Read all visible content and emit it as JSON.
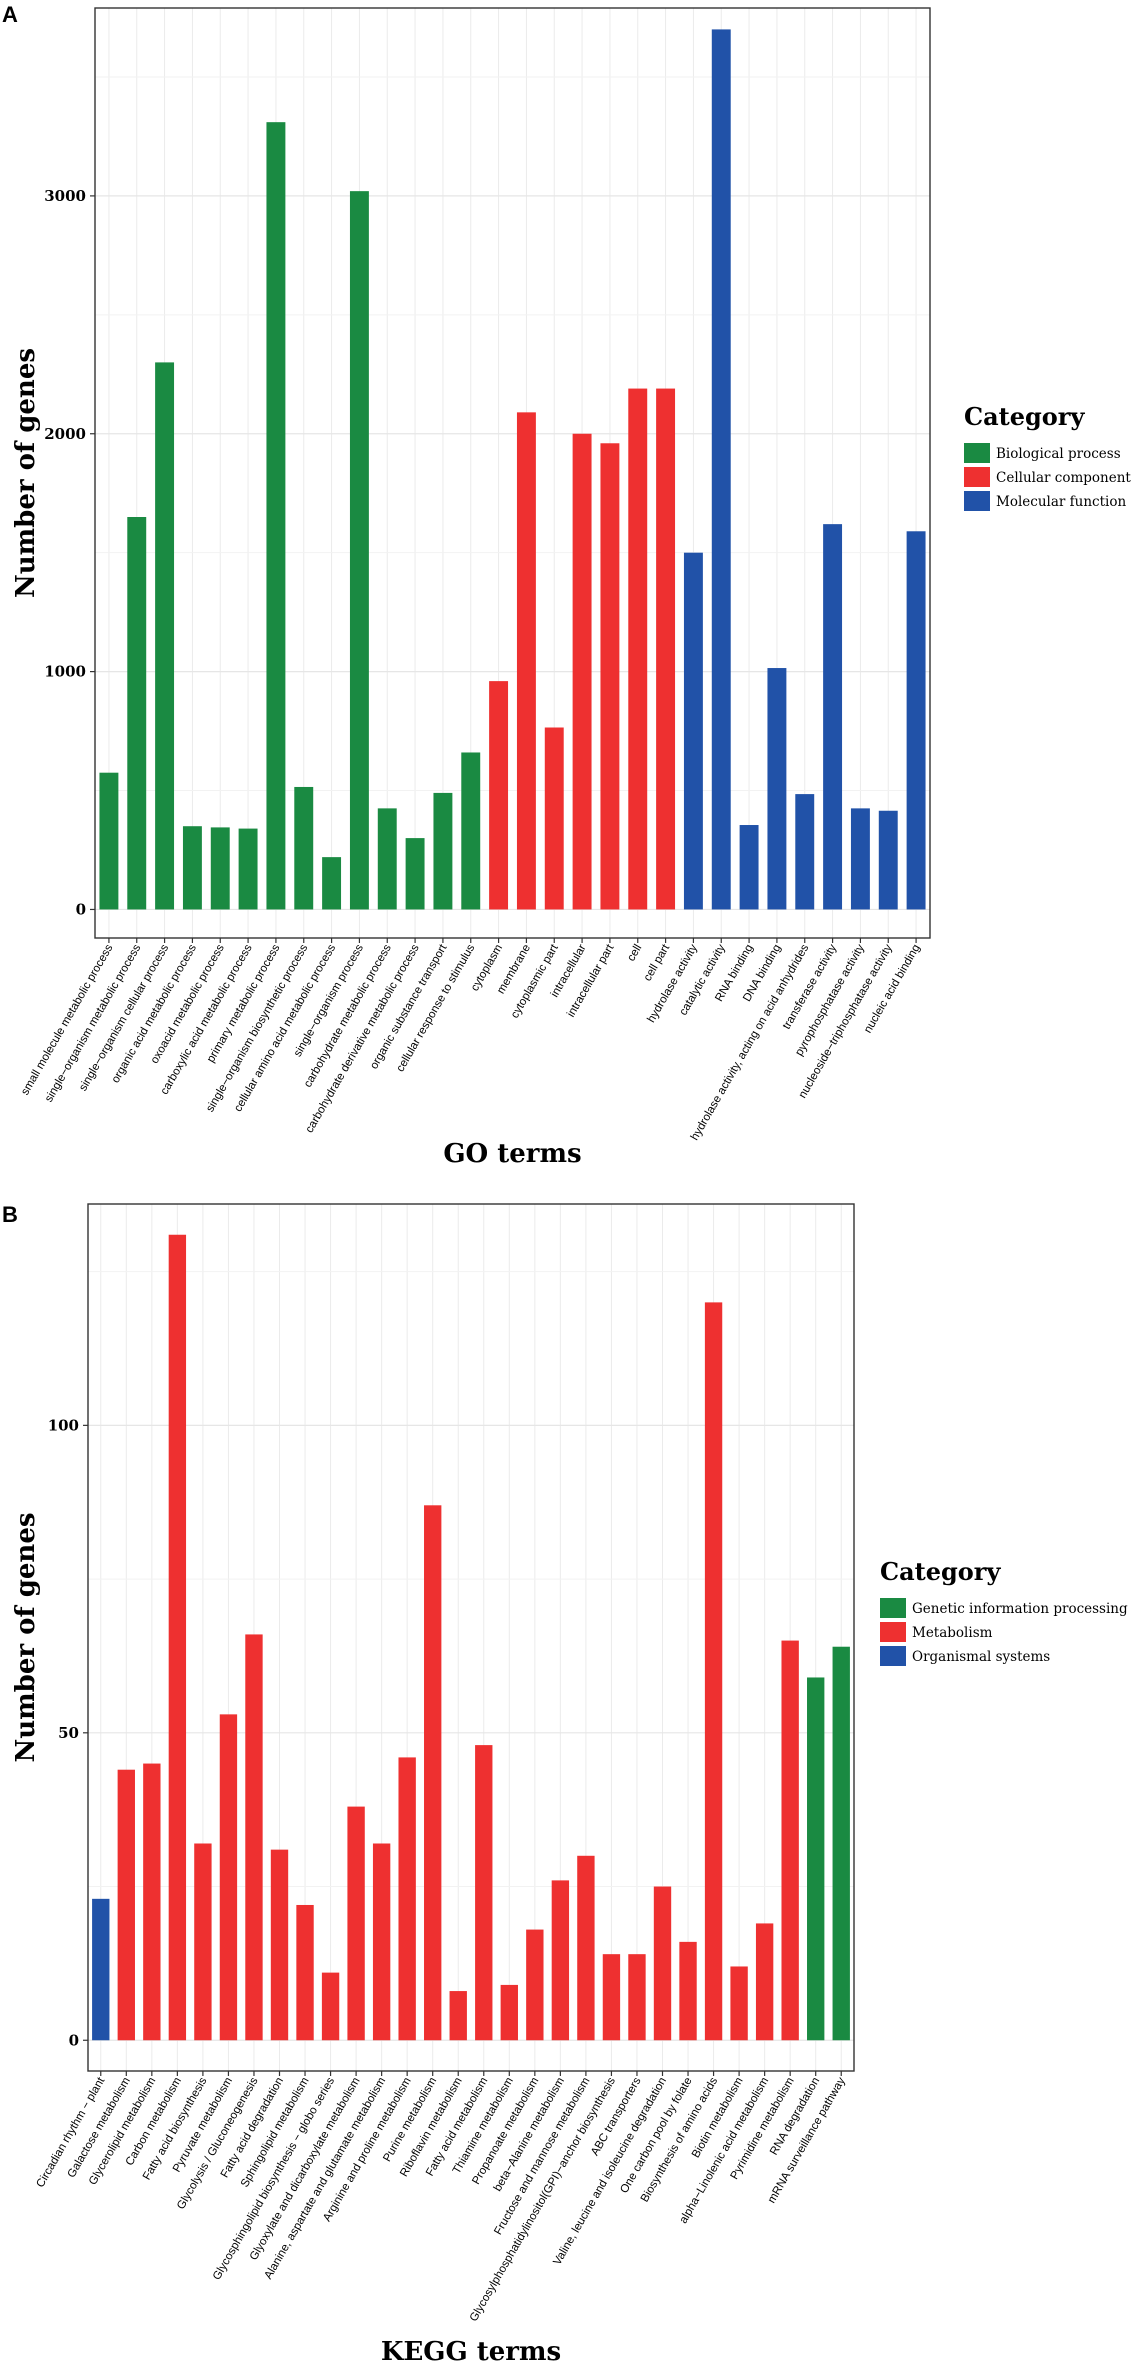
{
  "chart_data": [
    {
      "panel": "A",
      "type": "bar",
      "xlabel": "GO terms",
      "ylabel": "Number of genes",
      "ylim": [
        -120,
        3790
      ],
      "yticks": [
        0,
        1000,
        2000,
        3000
      ],
      "legend": {
        "title": "Category",
        "position": "right",
        "entries": [
          {
            "name": "Biological process",
            "color": "#1a8a42"
          },
          {
            "name": "Cellular component",
            "color": "#ee3030"
          },
          {
            "name": "Molecular function",
            "color": "#2152a8"
          }
        ]
      },
      "categories": [
        "small molecule metabolic process",
        "single−organism metabolic process",
        "single−organism cellular process",
        "organic acid metabolic process",
        "oxoacid metabolic process",
        "carboxylic acid metabolic process",
        "primary metabolic process",
        "single−organism biosynthetic process",
        "cellular amino acid metabolic process",
        "single−organism process",
        "carbohydrate metabolic process",
        "carbohydrate derivative metabolic process",
        "organic substance transport",
        "cellular response to stimulus",
        "cytoplasm",
        "membrane",
        "cytoplasmic part",
        "intracellular",
        "intracellular part",
        "cell",
        "cell part",
        "hydrolase activity",
        "catalytic activity",
        "RNA binding",
        "DNA binding",
        "hydrolase activity, acting on acid anhydrides",
        "transferase activity",
        "pyrophosphatase activity",
        "nucleoside−triphosphatase activity",
        "nucleic acid binding"
      ],
      "values": [
        575,
        1650,
        2300,
        350,
        345,
        340,
        3310,
        515,
        220,
        3020,
        425,
        300,
        490,
        660,
        960,
        2090,
        765,
        2000,
        1960,
        2190,
        2190,
        1500,
        3700,
        355,
        1015,
        485,
        1620,
        425,
        415,
        1590
      ],
      "groups": [
        0,
        0,
        0,
        0,
        0,
        0,
        0,
        0,
        0,
        0,
        0,
        0,
        0,
        0,
        1,
        1,
        1,
        1,
        1,
        1,
        1,
        2,
        2,
        2,
        2,
        2,
        2,
        2,
        2,
        2
      ]
    },
    {
      "panel": "B",
      "type": "bar",
      "xlabel": "KEGG terms",
      "ylabel": "Number of genes",
      "ylim": [
        -5,
        136
      ],
      "yticks": [
        0,
        50,
        100
      ],
      "legend": {
        "title": "Category",
        "position": "right",
        "entries": [
          {
            "name": "Genetic information processing",
            "color": "#1a8a42"
          },
          {
            "name": "Metabolism",
            "color": "#ee3030"
          },
          {
            "name": "Organismal systems",
            "color": "#2152a8"
          }
        ]
      },
      "categories": [
        "Circadian rhythm − plant",
        "Galactose metabolism",
        "Glycerolipid metabolism",
        "Carbon metabolism",
        "Fatty acid biosynthesis",
        "Pyruvate metabolism",
        "Glycolysis / Gluconeogenesis",
        "Fatty acid degradation",
        "Sphingolipid metabolism",
        "Glycosphingolipid biosynthesis − globo series",
        "Glyoxylate and dicarboxylate metabolism",
        "Alanine, aspartate and glutamate metabolism",
        "Arginine and proline metabolism",
        "Purine metabolism",
        "Riboflavin metabolism",
        "Fatty acid metabolism",
        "Thiamine metabolism",
        "Propanoate metabolism",
        "beta−Alanine metabolism",
        "Fructose and mannose metabolism",
        "Glycosylphosphatidylinositol(GPI)−anchor biosynthesis",
        "ABC transporters",
        "Valine, leucine and isoleucine degradation",
        "One carbon pool by folate",
        "Biosynthesis of amino acids",
        "Biotin metabolism",
        "alpha−Linolenic acid metabolism",
        "Pyrimidine metabolism",
        "RNA degradation",
        "mRNA surveillance pathway"
      ],
      "values": [
        23,
        44,
        45,
        131,
        32,
        53,
        66,
        31,
        22,
        11,
        38,
        32,
        46,
        87,
        8,
        48,
        9,
        18,
        26,
        30,
        14,
        14,
        25,
        16,
        120,
        12,
        19,
        65,
        59,
        64
      ],
      "groups": [
        2,
        1,
        1,
        1,
        1,
        1,
        1,
        1,
        1,
        1,
        1,
        1,
        1,
        1,
        1,
        1,
        1,
        1,
        1,
        1,
        1,
        1,
        1,
        1,
        1,
        1,
        1,
        1,
        0,
        0
      ]
    }
  ]
}
